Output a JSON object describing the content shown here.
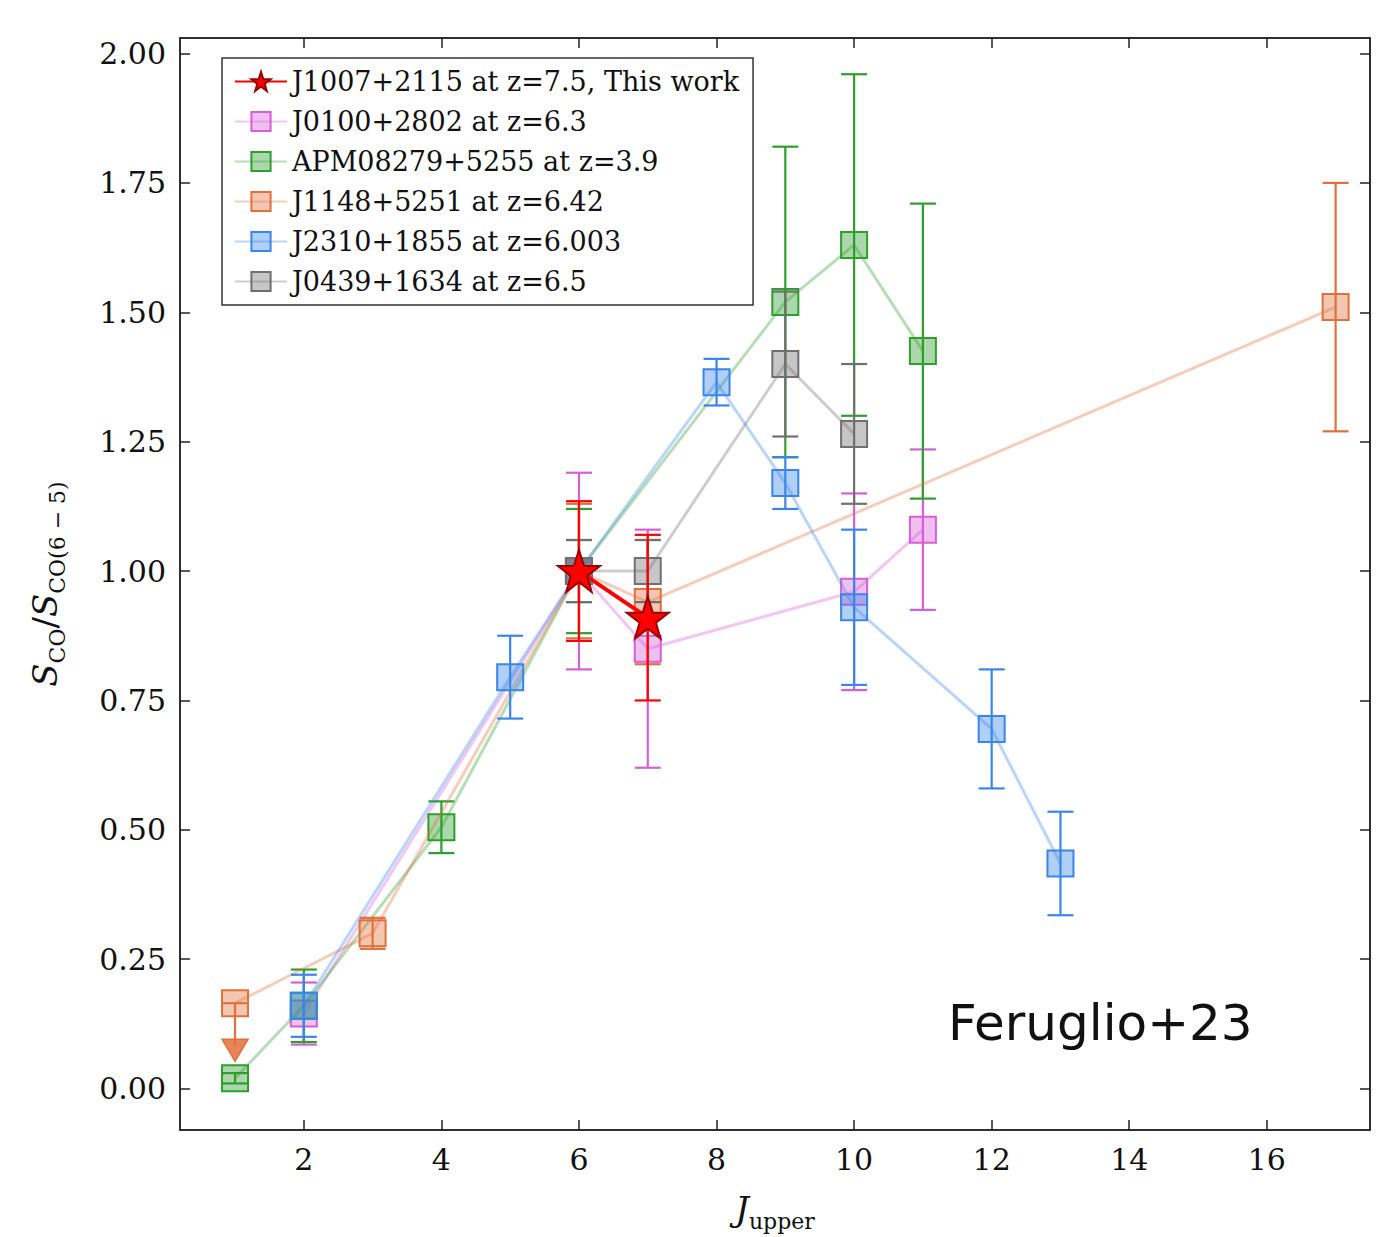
{
  "chart_data": {
    "type": "line",
    "xlabel": [
      {
        "text": "J",
        "italic": true
      },
      {
        "text": "upper",
        "sub": true
      }
    ],
    "ylabel": [
      {
        "text": "S",
        "italic": true
      },
      {
        "text": "CO",
        "sub": true
      },
      {
        "text": "/"
      },
      {
        "text": "S",
        "italic": true
      },
      {
        "text": "CO(6 − 5)",
        "sub": true
      }
    ],
    "xlim": [
      0.2,
      17.5
    ],
    "xticks": [
      2,
      4,
      6,
      8,
      10,
      12,
      14,
      16
    ],
    "ylim": [
      -0.08,
      2.03
    ],
    "yticks": [
      {
        "value": 0,
        "label": "0.00"
      },
      {
        "value": 0.25,
        "label": "0.25"
      },
      {
        "value": 0.5,
        "label": "0.50"
      },
      {
        "value": 0.75,
        "label": "0.75"
      },
      {
        "value": 1,
        "label": "1.00"
      },
      {
        "value": 1.25,
        "label": "1.25"
      },
      {
        "value": 1.5,
        "label": "1.50"
      },
      {
        "value": 1.75,
        "label": "1.75"
      },
      {
        "value": 2,
        "label": "2.00"
      }
    ],
    "grid": false,
    "legend": "upper left",
    "annotations": [
      "Feruglio+23"
    ],
    "series": [
      {
        "name": "J1007+2115 at z=7.5, This work",
        "color": "#ff0000",
        "marker": "star",
        "x": [
          6,
          7
        ],
        "values": [
          1.0,
          0.91
        ],
        "errors": [
          0.135,
          0.16
        ]
      },
      {
        "name": "J0100+2802 at z=6.3",
        "color": "#d65ed6",
        "marker": "square",
        "x": [
          2,
          6,
          7,
          10,
          11
        ],
        "values": [
          0.145,
          1.0,
          0.85,
          0.96,
          1.08
        ],
        "errors": [
          0.06,
          0.19,
          0.23,
          0.19,
          0.155
        ]
      },
      {
        "name": "APM08279+5255 at z=3.9",
        "color": "#2e9e2e",
        "marker": "square",
        "x": [
          1,
          2,
          4,
          6,
          9,
          10,
          11
        ],
        "values": [
          0.02,
          0.16,
          0.505,
          1.0,
          1.52,
          1.63,
          1.425
        ],
        "errors": [
          0.01,
          0.07,
          0.05,
          0.12,
          0.3,
          0.33,
          0.285
        ]
      },
      {
        "name": "J1148+5251 at z=6.42",
        "color": "#e0703c",
        "marker": "square",
        "x": [
          1,
          3,
          6,
          7,
          17
        ],
        "values": [
          0.165,
          0.3,
          1.0,
          0.94,
          1.51
        ],
        "errors": [
          null,
          0.03,
          0.13,
          0.12,
          0.24
        ],
        "upper_limits": [
          true,
          false,
          false,
          false,
          false
        ]
      },
      {
        "name": "J2310+1855 at z=6.003",
        "color": "#3a86e8",
        "marker": "square",
        "x": [
          2,
          5,
          6,
          8,
          9,
          10,
          12,
          13
        ],
        "values": [
          0.16,
          0.795,
          1.0,
          1.365,
          1.17,
          0.93,
          0.695,
          0.435
        ],
        "errors": [
          0.06,
          0.08,
          0.06,
          0.045,
          0.05,
          0.15,
          0.115,
          0.1
        ]
      },
      {
        "name": "J0439+1634 at z=6.5",
        "color": "#707070",
        "marker": "square",
        "x": [
          6,
          7,
          9,
          10
        ],
        "values": [
          1.0,
          1.0,
          1.4,
          1.265
        ],
        "errors": [
          0.06,
          0.06,
          0.14,
          0.135
        ]
      }
    ]
  }
}
